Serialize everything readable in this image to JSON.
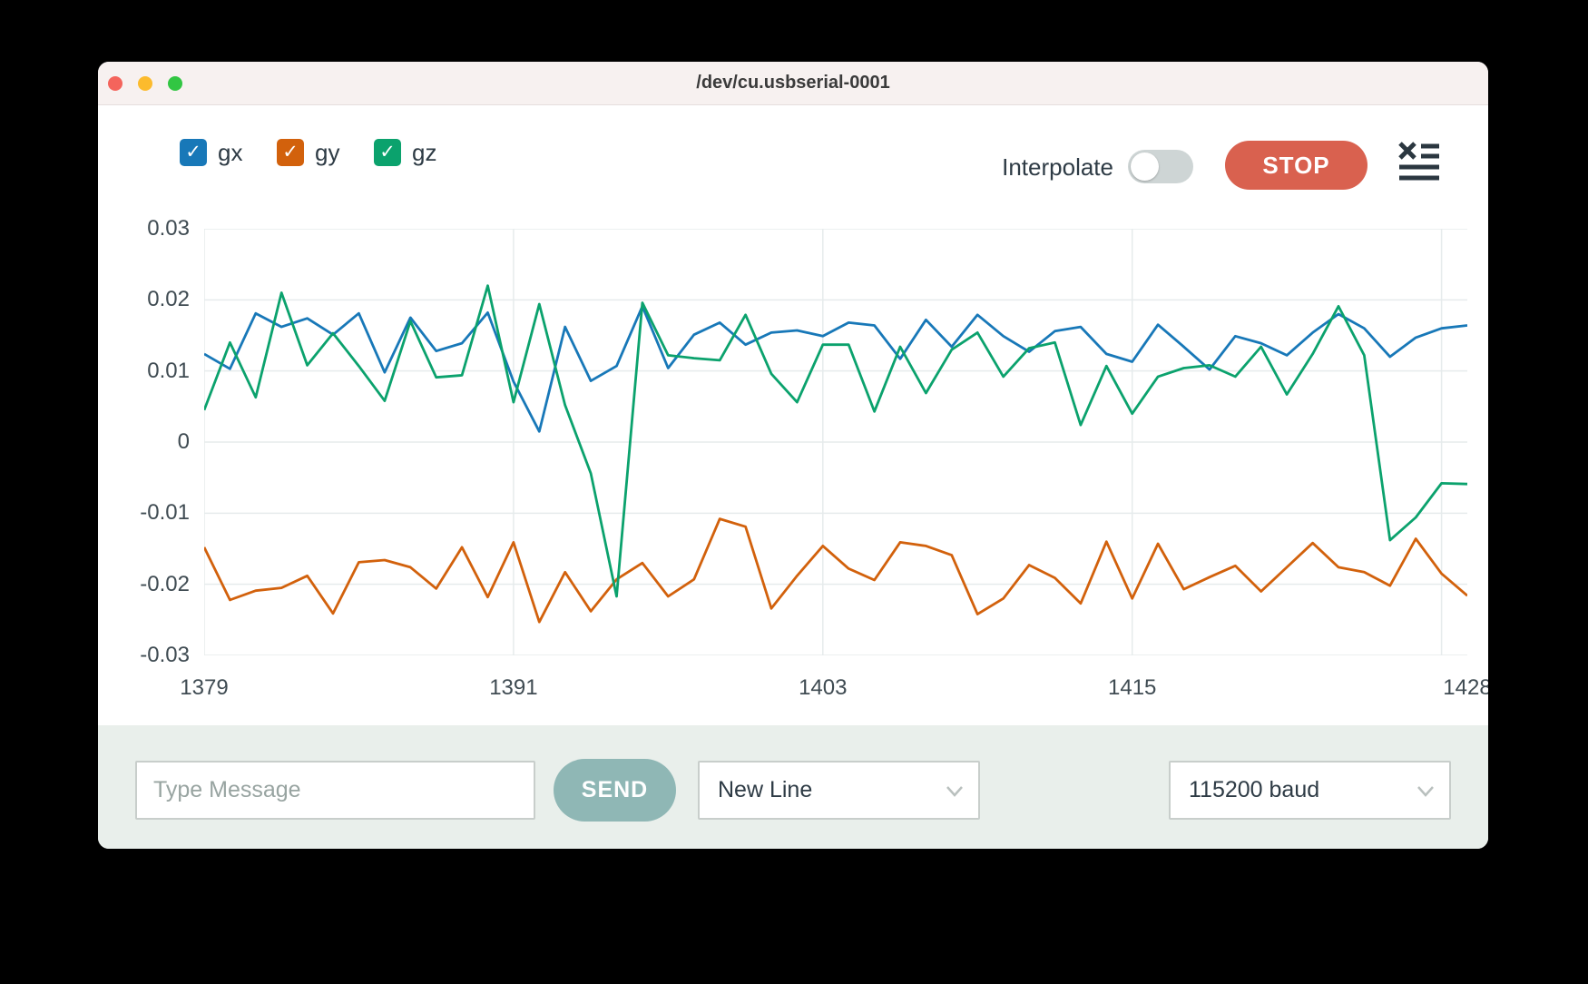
{
  "window": {
    "title": "/dev/cu.usbserial-0001",
    "traffic_lights": {
      "close": "#f4645c",
      "minimize": "#fcbb2d",
      "zoom": "#32c643"
    }
  },
  "legend": {
    "items": [
      {
        "label": "gx",
        "color": "#1878b8",
        "checked": true,
        "check_glyph": "✓"
      },
      {
        "label": "gy",
        "color": "#d2610c",
        "checked": true,
        "check_glyph": "✓"
      },
      {
        "label": "gz",
        "color": "#0ba26d",
        "checked": true,
        "check_glyph": "✓"
      }
    ]
  },
  "controls": {
    "interpolate_label": "Interpolate",
    "interpolate_on": false,
    "stop_label": "STOP",
    "stop_color": "#d9614f",
    "clear_icon": "clear-console-icon"
  },
  "composer": {
    "message_placeholder": "Type Message",
    "send_label": "SEND",
    "line_ending_selected": "New Line",
    "baud_rate_selected": "115200 baud"
  },
  "chart_data": {
    "type": "line",
    "xlim": [
      1379,
      1428
    ],
    "ylim": [
      -0.03,
      0.03
    ],
    "x_gridlines": [
      1379,
      1391,
      1403,
      1415,
      1427
    ],
    "x_tick_labels": [
      1379,
      1391,
      1403,
      1415,
      1428
    ],
    "y_ticks": [
      "0.03",
      "0.02",
      "0.01",
      "0",
      "-0.01",
      "-0.02",
      "-0.03"
    ],
    "grid_color": "#e6ebec",
    "line_width": 2.8,
    "x_start": 1379,
    "series": [
      {
        "name": "gx",
        "color": "#1878b8",
        "values": [
          0.0124,
          0.0103,
          0.0181,
          0.0162,
          0.0174,
          0.0151,
          0.0181,
          0.0098,
          0.0175,
          0.0128,
          0.0139,
          0.0182,
          0.0085,
          0.0015,
          0.0162,
          0.0086,
          0.0107,
          0.0191,
          0.0104,
          0.0151,
          0.0168,
          0.0137,
          0.0154,
          0.0157,
          0.0149,
          0.0168,
          0.0164,
          0.0117,
          0.0172,
          0.0134,
          0.0179,
          0.0149,
          0.0127,
          0.0156,
          0.0162,
          0.0124,
          0.0113,
          0.0165,
          0.0134,
          0.0102,
          0.0149,
          0.0139,
          0.0122,
          0.0154,
          0.018,
          0.016,
          0.012,
          0.0147,
          0.016,
          0.0164
        ]
      },
      {
        "name": "gy",
        "color": "#d2610c",
        "values": [
          -0.0148,
          -0.0222,
          -0.0209,
          -0.0205,
          -0.0188,
          -0.0241,
          -0.0169,
          -0.0166,
          -0.0176,
          -0.0206,
          -0.0148,
          -0.0218,
          -0.0141,
          -0.0253,
          -0.0183,
          -0.0238,
          -0.0193,
          -0.017,
          -0.0217,
          -0.0193,
          -0.0108,
          -0.0119,
          -0.0234,
          -0.0188,
          -0.0146,
          -0.0178,
          -0.0194,
          -0.0141,
          -0.0146,
          -0.0159,
          -0.0242,
          -0.022,
          -0.0173,
          -0.0191,
          -0.0227,
          -0.014,
          -0.022,
          -0.0143,
          -0.0207,
          -0.019,
          -0.0174,
          -0.021,
          -0.0176,
          -0.0142,
          -0.0176,
          -0.0183,
          -0.0202,
          -0.0136,
          -0.0185,
          -0.0216
        ]
      },
      {
        "name": "gz",
        "color": "#0ba26d",
        "values": [
          0.0045,
          0.014,
          0.0063,
          0.021,
          0.0108,
          0.0153,
          0.0107,
          0.0058,
          0.017,
          0.0091,
          0.0094,
          0.022,
          0.0056,
          0.0194,
          0.0052,
          -0.0044,
          -0.0217,
          0.0196,
          0.0122,
          0.0118,
          0.0115,
          0.0179,
          0.0096,
          0.0056,
          0.0137,
          0.0137,
          0.0043,
          0.0134,
          0.0069,
          0.013,
          0.0154,
          0.0092,
          0.0132,
          0.014,
          0.0024,
          0.0107,
          0.004,
          0.0092,
          0.0104,
          0.0108,
          0.0092,
          0.0134,
          0.0067,
          0.0124,
          0.0191,
          0.0122,
          -0.0138,
          -0.0106,
          -0.0058,
          -0.0059
        ]
      }
    ]
  }
}
